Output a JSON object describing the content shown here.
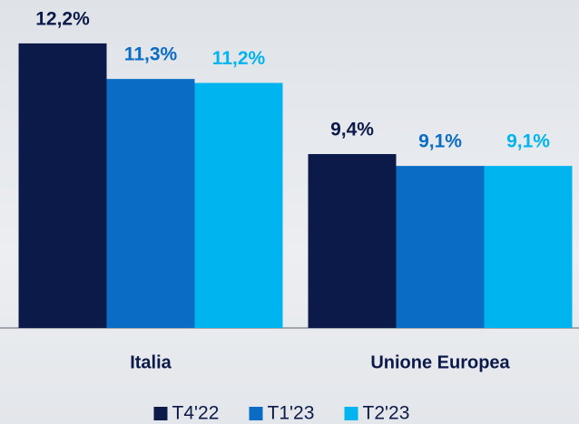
{
  "chart_data": {
    "type": "bar",
    "categories": [
      "Italia",
      "Unione Europea"
    ],
    "series": [
      {
        "name": "T4'22",
        "color": "#0c1a4a",
        "values": [
          12.2,
          9.4
        ],
        "value_labels": [
          "12,2%",
          "9,4%"
        ]
      },
      {
        "name": "T1'23",
        "color": "#0a6cc4",
        "values": [
          11.3,
          9.1
        ],
        "value_labels": [
          "11,3%",
          "9,1%"
        ]
      },
      {
        "name": "T2'23",
        "color": "#00b4ef",
        "values": [
          11.2,
          9.1
        ],
        "value_labels": [
          "11,2%",
          "9,1%"
        ]
      }
    ],
    "ylim": [
      5,
      13
    ]
  }
}
